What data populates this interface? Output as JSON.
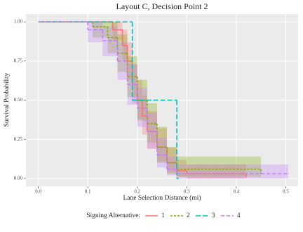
{
  "chart_data": {
    "type": "step",
    "title": "Layout C, Decision Point 2",
    "x_label": "Lane Selection Distance (mi)",
    "y_label": "Survival Probability",
    "legend_title": "Signing Alternative:",
    "legend_position": "bottom",
    "grid": true,
    "xlim": [
      -0.025,
      0.525
    ],
    "ylim": [
      -0.05,
      1.05
    ],
    "xticks": [
      {
        "value": 0,
        "label": "0.0"
      },
      0.1,
      0.2,
      0.3,
      0.4,
      0.5
    ],
    "yticks": [
      {
        "value": 0,
        "label": "0.00"
      },
      0.25,
      {
        "value": 0.5,
        "label": "0.50"
      },
      0.75,
      {
        "value": 1,
        "label": "1.00"
      }
    ],
    "series": [
      {
        "name": "1",
        "color": "#F8766D",
        "dash": "none",
        "x": [
          0,
          0.15,
          0.17,
          0.18,
          0.19,
          0.2,
          0.21,
          0.22,
          0.24,
          0.26,
          0.28,
          0.3,
          0.42
        ],
        "values": [
          1,
          0.95,
          0.85,
          0.75,
          0.6,
          0.5,
          0.4,
          0.3,
          0.2,
          0.1,
          0.05,
          0.03,
          0.01
        ],
        "lower": [
          1,
          0.88,
          0.75,
          0.63,
          0.48,
          0.38,
          0.28,
          0.19,
          0.11,
          0.04,
          0.01,
          0,
          0
        ],
        "upper": [
          1,
          1,
          0.95,
          0.87,
          0.73,
          0.63,
          0.53,
          0.43,
          0.32,
          0.2,
          0.12,
          0.09,
          0.05
        ]
      },
      {
        "name": "2",
        "color": "#7CAE00",
        "dash": "3,2",
        "x": [
          0,
          0.11,
          0.14,
          0.16,
          0.18,
          0.2,
          0.22,
          0.24,
          0.26,
          0.28,
          0.45
        ],
        "values": [
          1,
          0.97,
          0.9,
          0.8,
          0.65,
          0.5,
          0.35,
          0.2,
          0.1,
          0.06,
          0.03
        ],
        "lower": [
          1,
          0.9,
          0.8,
          0.68,
          0.52,
          0.37,
          0.23,
          0.1,
          0.03,
          0.01,
          0
        ],
        "upper": [
          1,
          1,
          1,
          0.92,
          0.78,
          0.63,
          0.48,
          0.33,
          0.2,
          0.14,
          0.12
        ]
      },
      {
        "name": "3",
        "color": "#00BFC4",
        "dash": "7,3",
        "x": [
          0,
          0.19,
          0.28,
          0.283
        ],
        "values": [
          1,
          0.5,
          0,
          0
        ]
      },
      {
        "name": "4",
        "color": "#C77CFF",
        "dash": "5,3",
        "x": [
          0,
          0.1,
          0.13,
          0.16,
          0.18,
          0.2,
          0.22,
          0.24,
          0.26,
          0.28,
          0.505
        ],
        "values": [
          1,
          0.95,
          0.88,
          0.75,
          0.6,
          0.45,
          0.3,
          0.15,
          0.06,
          0.03,
          0.03
        ],
        "lower": [
          1,
          0.87,
          0.78,
          0.63,
          0.47,
          0.33,
          0.19,
          0.07,
          0.02,
          0,
          0
        ],
        "upper": [
          1,
          1,
          0.97,
          0.87,
          0.73,
          0.58,
          0.42,
          0.26,
          0.14,
          0.09,
          0.08
        ]
      }
    ]
  }
}
